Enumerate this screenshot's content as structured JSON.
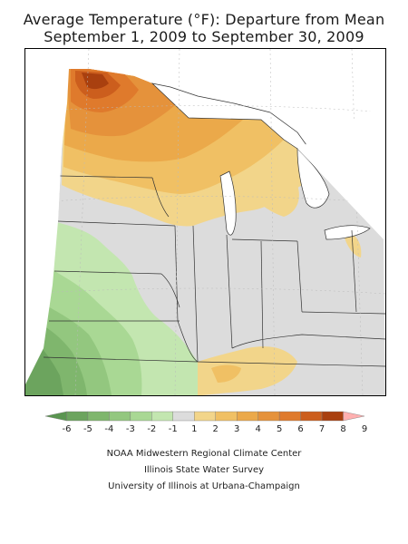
{
  "title_line1": "Average Temperature (°F): Departure from Mean",
  "title_line2": "September 1, 2009 to September 30, 2009",
  "legend": {
    "ticks": [
      "-6",
      "-5",
      "-4",
      "-3",
      "-2",
      "-1",
      "1",
      "2",
      "3",
      "4",
      "5",
      "6",
      "7",
      "8",
      "9"
    ],
    "colors": [
      "#5a9550",
      "#6ca45e",
      "#7fb66d",
      "#93c77f",
      "#a9d894",
      "#c3e6b0",
      "#dcdcdc",
      "#f2d58a",
      "#f0c064",
      "#eba94a",
      "#e5923b",
      "#df7a2c",
      "#cc5e1d",
      "#a9400f",
      "#ffb0b0"
    ]
  },
  "credits": {
    "line1": "NOAA Midwestern Regional Climate Center",
    "line2": "Illinois State Water Survey",
    "line3": "University of Illinois at Urbana-Champaign"
  }
}
